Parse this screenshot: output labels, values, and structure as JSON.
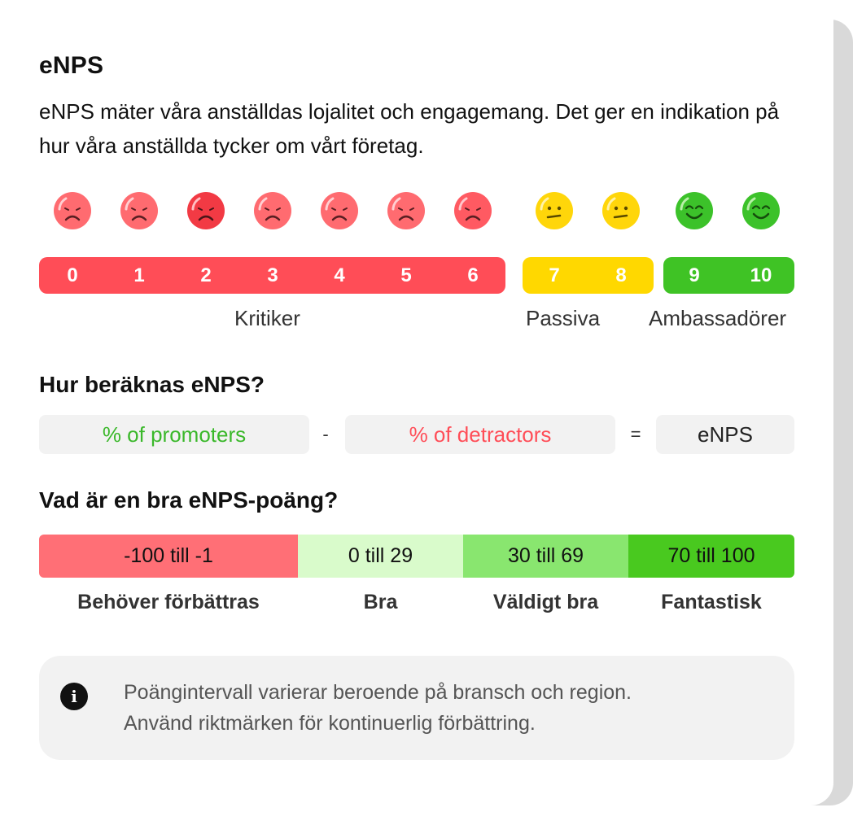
{
  "header": {
    "title": "eNPS",
    "description": "eNPS mäter våra anställdas lojalitet och engagemang. Det ger en indikation på hur våra anställda tycker om vårt företag."
  },
  "scale": {
    "scores": [
      "0",
      "1",
      "2",
      "3",
      "4",
      "5",
      "6",
      "7",
      "8",
      "9",
      "10"
    ],
    "groups": [
      {
        "label": "Kritiker",
        "color": "#ff4d57"
      },
      {
        "label": "Passiva",
        "color": "#ffd800"
      },
      {
        "label": "Ambassadörer",
        "color": "#3fc325"
      }
    ],
    "face_icons": [
      "sad-face-icon",
      "sad-face-icon",
      "sad-face-icon",
      "sad-face-icon",
      "sad-face-icon",
      "sad-face-icon",
      "sad-face-icon",
      "neutral-face-icon",
      "neutral-face-icon",
      "happy-face-icon",
      "happy-face-icon"
    ]
  },
  "formula": {
    "heading": "Hur beräknas eNPS?",
    "promoters": "% of promoters",
    "minus": "-",
    "detractors": "% of detractors",
    "equals": "=",
    "result": "eNPS",
    "promoters_color": "#3ab82a",
    "detractors_color": "#ff4d57"
  },
  "score_ranges": {
    "heading": "Vad är en bra eNPS-poäng?",
    "segments": [
      {
        "range": "-100 till -1",
        "label": "Behöver förbättras",
        "color": "#ff6f76"
      },
      {
        "range": "0 till 29",
        "label": "Bra",
        "color": "#d9fbcb"
      },
      {
        "range": "30 till 69",
        "label": "Väldigt bra",
        "color": "#89e66f"
      },
      {
        "range": "70 till 100",
        "label": "Fantastisk",
        "color": "#49c91f"
      }
    ]
  },
  "info": {
    "icon": "info-icon",
    "text_line1": "Poängintervall varierar beroende på bransch och region.",
    "text_line2": "Använd riktmärken för kontinuerlig förbättring."
  }
}
